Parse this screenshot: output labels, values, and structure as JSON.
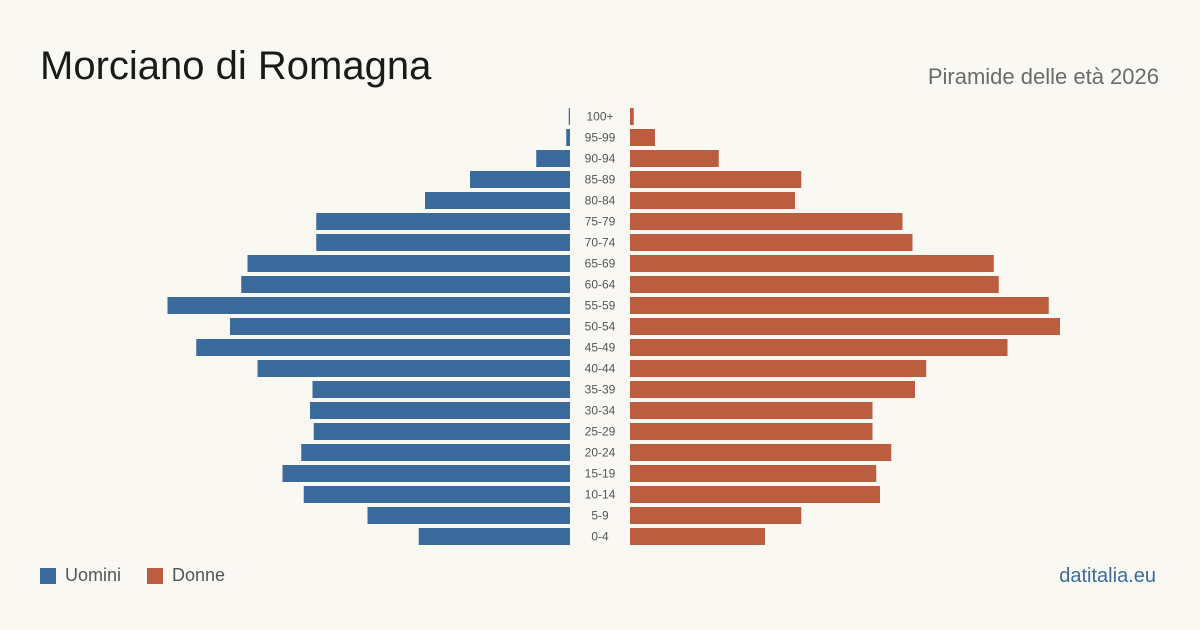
{
  "title": "Morciano di Romagna",
  "subtitle": "Piramide delle età 2026",
  "legend": {
    "men_label": "Uomini",
    "women_label": "Donne"
  },
  "source": "datitalia.eu",
  "colors": {
    "men": "#3a6b9c",
    "women": "#bb5d3f",
    "background": "#faf8f3"
  },
  "chart_data": {
    "type": "bar",
    "orientation": "horizontal-pyramid",
    "categories": [
      "100+",
      "95-99",
      "90-94",
      "85-89",
      "80-84",
      "75-79",
      "70-74",
      "65-69",
      "60-64",
      "55-59",
      "50-54",
      "45-49",
      "40-44",
      "35-39",
      "30-34",
      "25-29",
      "20-24",
      "15-19",
      "10-14",
      "5-9",
      "0-4"
    ],
    "series": [
      {
        "name": "Uomini",
        "side": "left",
        "values": [
          1,
          3,
          27,
          80,
          116,
          203,
          203,
          258,
          263,
          322,
          272,
          299,
          250,
          206,
          208,
          205,
          215,
          230,
          213,
          162,
          121
        ]
      },
      {
        "name": "Donne",
        "side": "right",
        "values": [
          3,
          20,
          71,
          137,
          132,
          218,
          226,
          291,
          295,
          335,
          344,
          302,
          237,
          228,
          194,
          194,
          209,
          197,
          200,
          137,
          108
        ]
      }
    ],
    "legend_position": "bottom-left",
    "grid": false
  }
}
